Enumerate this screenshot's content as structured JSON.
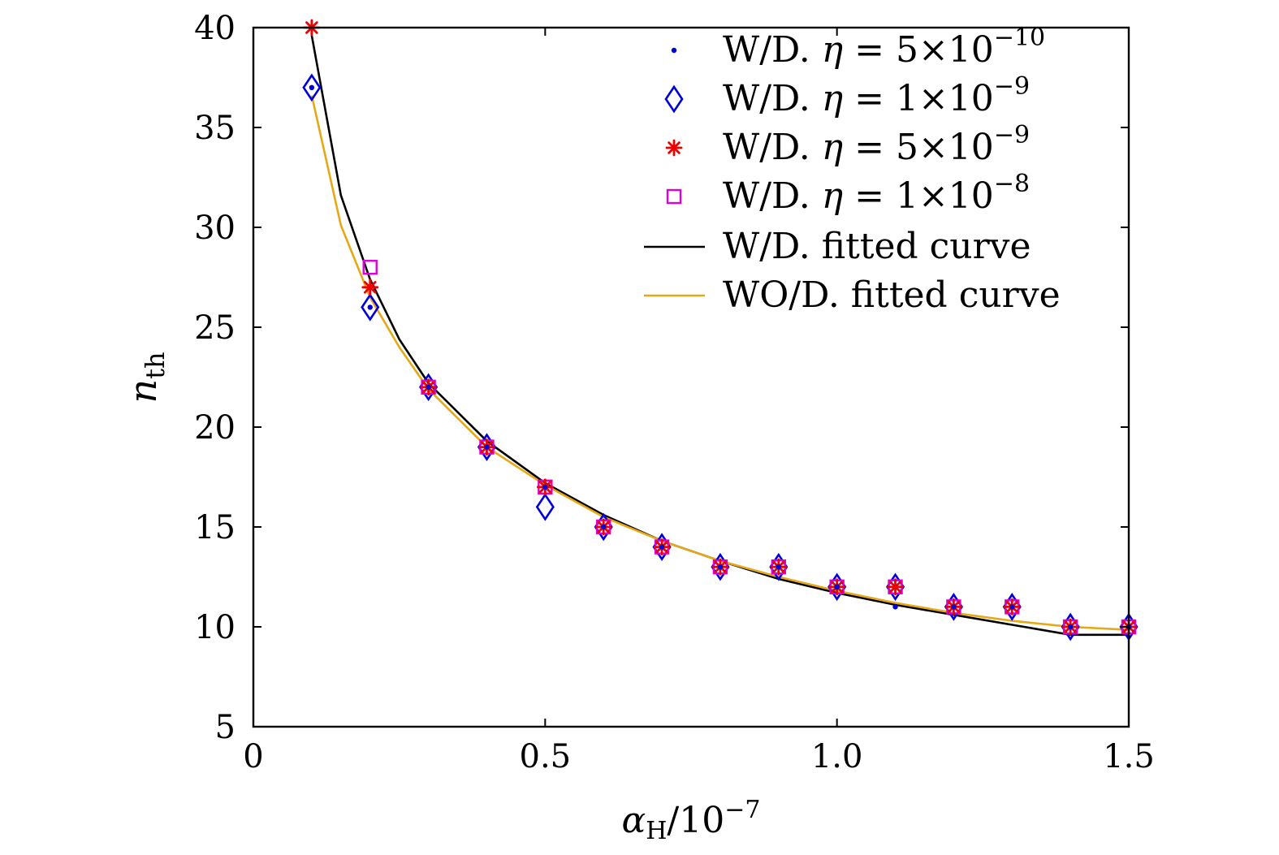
{
  "chart_data": {
    "type": "scatter",
    "title": "",
    "xlabel": {
      "main": "α",
      "sub": "H",
      "rest": "/10",
      "sup": "−7"
    },
    "ylabel": {
      "main": "n",
      "sub": "th"
    },
    "xlim": [
      0,
      1.5
    ],
    "ylim": [
      5,
      40
    ],
    "x_ticks": [
      0,
      0.5,
      1.0,
      1.5
    ],
    "x_tick_labels": [
      "0",
      "0.5",
      "1.0",
      "1.5"
    ],
    "y_ticks": [
      5,
      10,
      15,
      20,
      25,
      30,
      35,
      40
    ],
    "y_tick_labels": [
      "5",
      "10",
      "15",
      "20",
      "25",
      "30",
      "35",
      "40"
    ],
    "grid": false,
    "legend_position": "top-right",
    "x": [
      0.1,
      0.2,
      0.3,
      0.4,
      0.5,
      0.6,
      0.7,
      0.8,
      0.9,
      1.0,
      1.1,
      1.2,
      1.3,
      1.4,
      1.5
    ],
    "series": [
      {
        "name": "W/D. η = 5×10−10",
        "label_prefix": "W/D. ",
        "label_var": "η",
        "label_mid": " = 5×10",
        "label_sup": "−10",
        "marker": "dot",
        "color": "#0000dd",
        "values": [
          37,
          26,
          22,
          19,
          17,
          15,
          14,
          13,
          13,
          12,
          11,
          11,
          11,
          10,
          10
        ]
      },
      {
        "name": "W/D. η = 1×10−9",
        "label_prefix": "W/D. ",
        "label_var": "η",
        "label_mid": " = 1×10",
        "label_sup": "−9",
        "marker": "diamond",
        "color": "#0000dd",
        "values": [
          37,
          26,
          22,
          19,
          16,
          15,
          14,
          13,
          13,
          12,
          12,
          11,
          11,
          10,
          10
        ]
      },
      {
        "name": "W/D. η = 5×10−9",
        "label_prefix": "W/D. ",
        "label_var": "η",
        "label_mid": " = 5×10",
        "label_sup": "−9",
        "marker": "asterisk",
        "color": "#ee0000",
        "values": [
          40,
          27,
          22,
          19,
          17,
          15,
          14,
          13,
          13,
          12,
          12,
          11,
          11,
          10,
          10
        ]
      },
      {
        "name": "W/D. η = 1×10−8",
        "label_prefix": "W/D. ",
        "label_var": "η",
        "label_mid": " = 1×10",
        "label_sup": "−8",
        "marker": "square",
        "color": "#dd00dd",
        "values": [
          null,
          28,
          22,
          19,
          17,
          15,
          14,
          13,
          13,
          12,
          12,
          11,
          11,
          10,
          10
        ]
      }
    ],
    "curves": [
      {
        "name": "W/D. fitted curve",
        "color": "#000000",
        "x": [
          0.1,
          0.15,
          0.2,
          0.25,
          0.3,
          0.4,
          0.5,
          0.6,
          0.7,
          0.8,
          0.9,
          1.0,
          1.1,
          1.2,
          1.3,
          1.4,
          1.5
        ],
        "values": [
          39.6,
          31.6,
          27.4,
          24.4,
          22.2,
          19.3,
          17.2,
          15.6,
          14.3,
          13.3,
          12.4,
          11.7,
          11.1,
          10.6,
          10.1,
          9.6,
          9.6
        ]
      },
      {
        "name": "WO/D. fitted curve",
        "color": "#e6a817",
        "x": [
          0.1,
          0.15,
          0.2,
          0.25,
          0.3,
          0.4,
          0.5,
          0.6,
          0.7,
          0.8,
          0.9,
          1.0,
          1.1,
          1.2,
          1.3,
          1.4,
          1.5
        ],
        "values": [
          36.6,
          30.1,
          26.5,
          24.0,
          21.9,
          19.0,
          17.1,
          15.5,
          14.3,
          13.3,
          12.5,
          11.8,
          11.2,
          10.7,
          10.3,
          10.0,
          9.85
        ]
      }
    ]
  }
}
